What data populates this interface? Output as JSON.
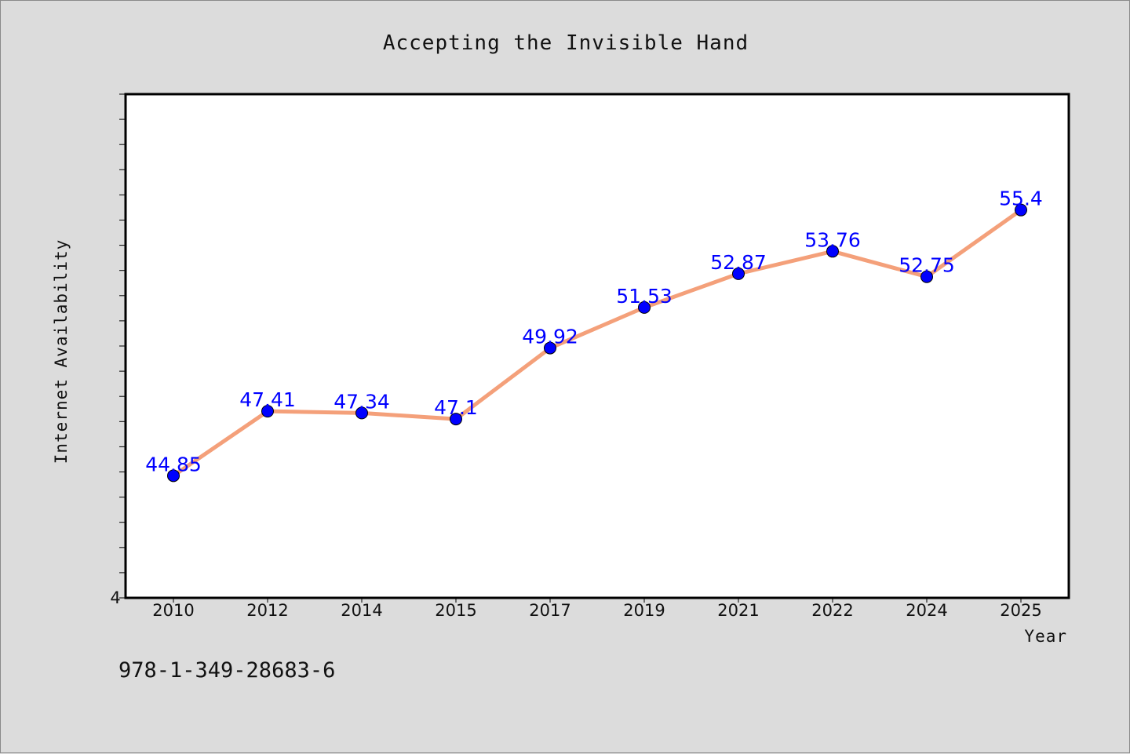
{
  "chart_data": {
    "type": "line",
    "title": "Accepting the Invisible Hand",
    "xlabel": "Year",
    "ylabel": "Internet Availability",
    "categories": [
      "2010",
      "2012",
      "2014",
      "2015",
      "2017",
      "2019",
      "2021",
      "2022",
      "2024",
      "2025"
    ],
    "series": [
      {
        "values": [
          44.85,
          47.41,
          47.34,
          47.1,
          49.92,
          51.53,
          52.87,
          53.76,
          52.75,
          55.4
        ],
        "labels": [
          "44.85",
          "47.41",
          "47.34",
          "47.1",
          "49.92",
          "51.53",
          "52.87",
          "53.76",
          "52.75",
          "55.4"
        ],
        "line_color": "#f4a07a",
        "marker_color": "#0000ff"
      }
    ],
    "ylim": [
      40,
      60
    ],
    "y_tick_labels": [
      "4"
    ],
    "grid": false,
    "legend": "none"
  },
  "footer": {
    "code": "978-1-349-28683-6"
  }
}
